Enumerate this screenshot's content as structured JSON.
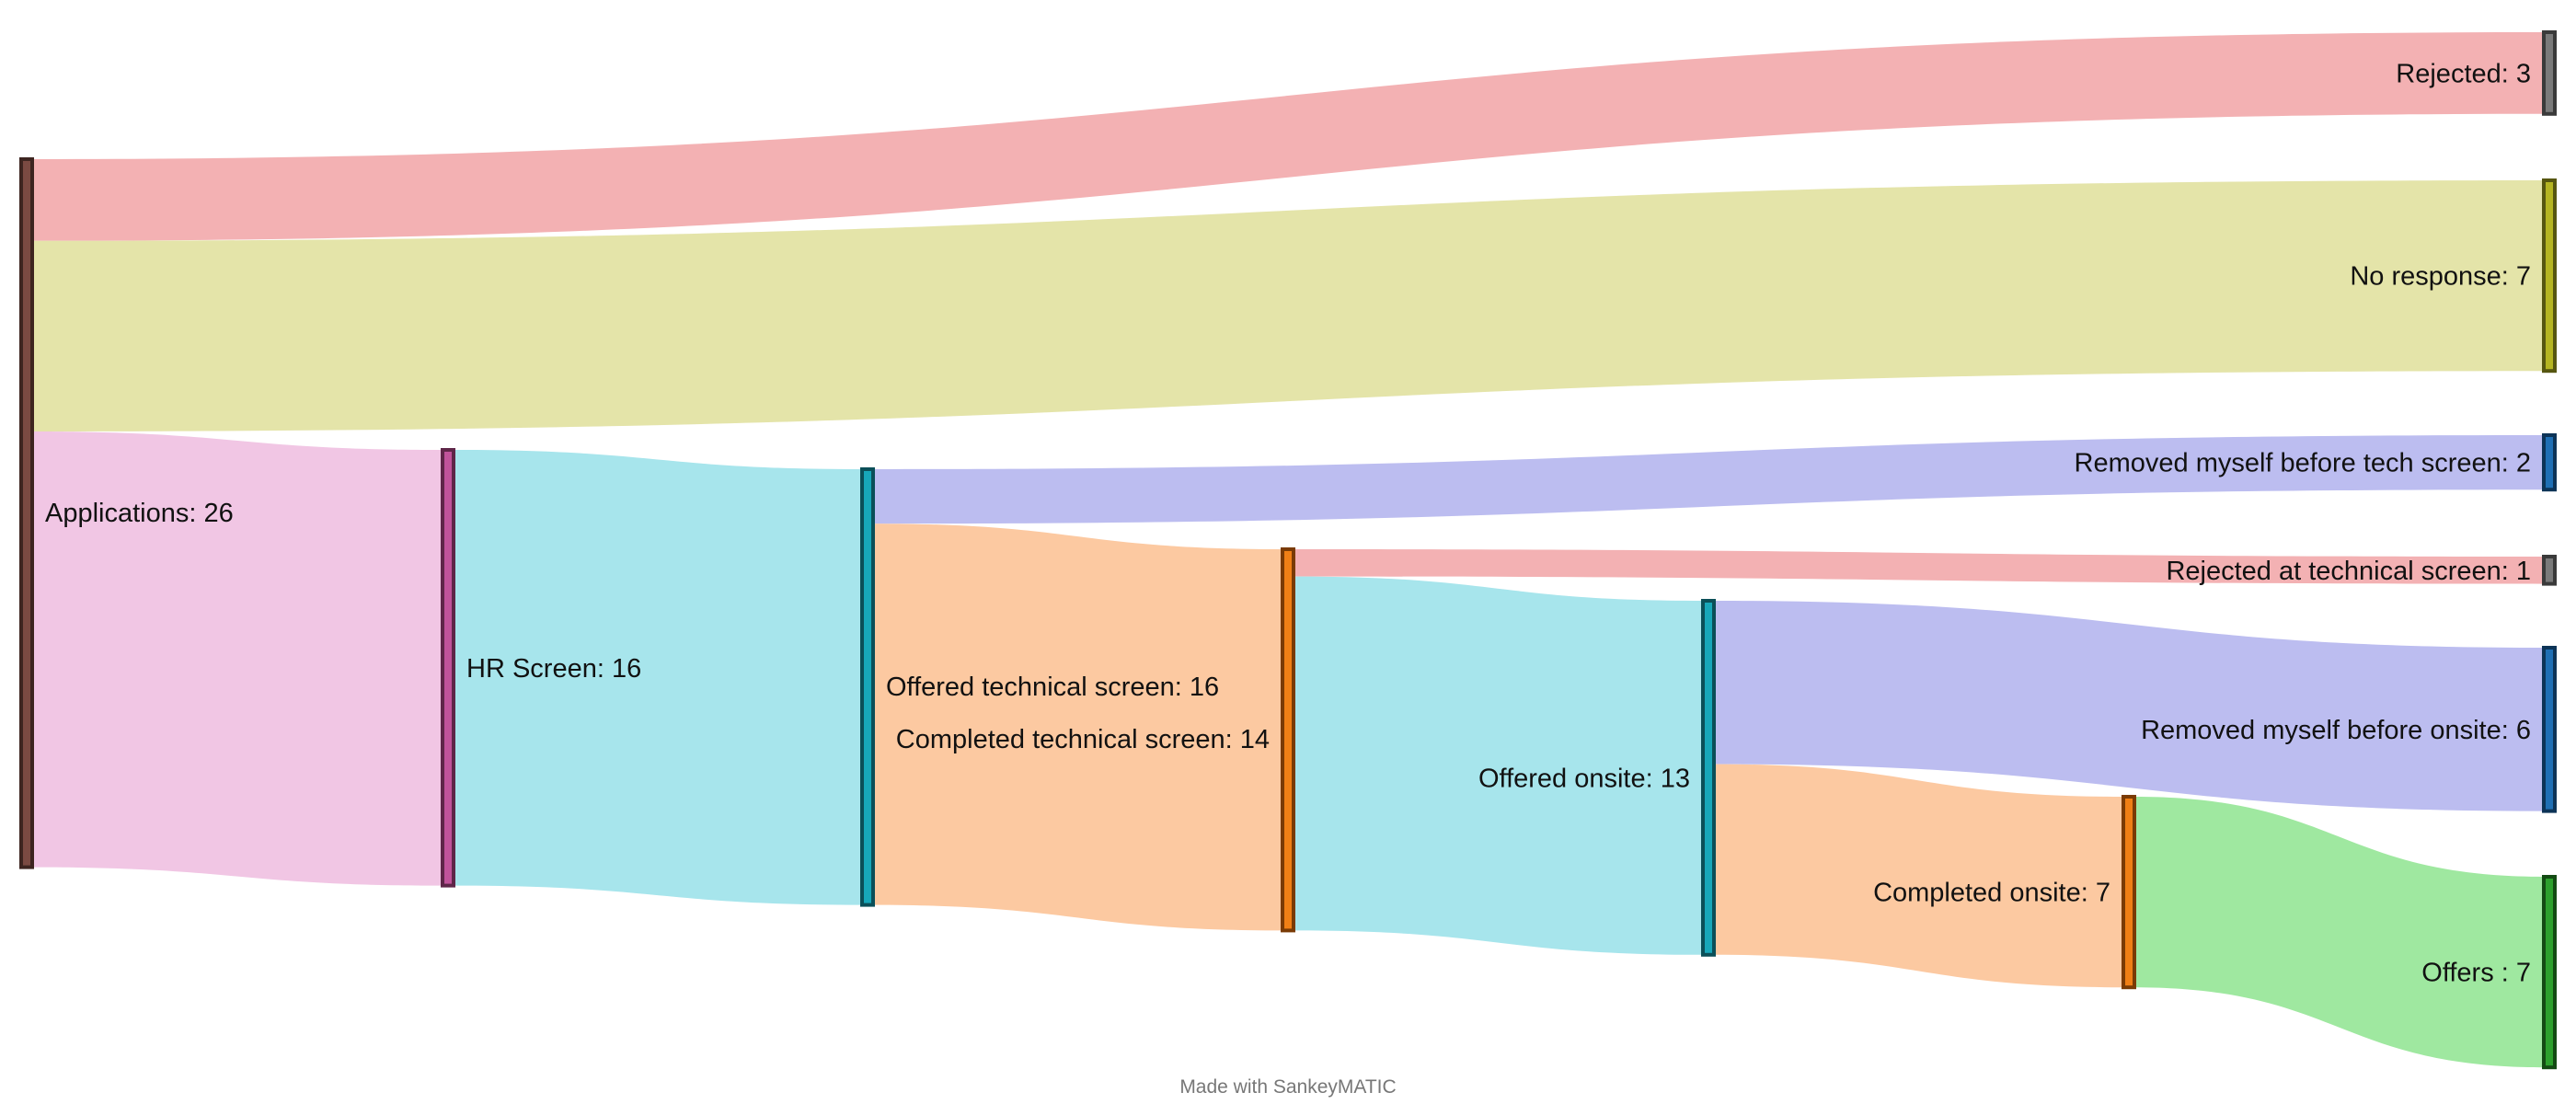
{
  "chart_data": {
    "type": "sankey",
    "nodes": [
      {
        "id": "applications",
        "label": "Applications: 26",
        "color": "#7a4a42",
        "border": "#3d2520"
      },
      {
        "id": "hr_screen",
        "label": "HR Screen: 16",
        "color": "#c0539a",
        "border": "#5e2648"
      },
      {
        "id": "offered_tech",
        "label": "Offered technical screen: 16",
        "color": "#17a7b9",
        "border": "#0b4f58"
      },
      {
        "id": "completed_tech",
        "label": "Completed technical screen: 14",
        "color": "#f07f15",
        "border": "#7a3b05"
      },
      {
        "id": "offered_onsite",
        "label": "Offered onsite: 13",
        "color": "#17a7b9",
        "border": "#0b4f58"
      },
      {
        "id": "completed_onsite",
        "label": "Completed onsite: 7",
        "color": "#f07f15",
        "border": "#7a3b05"
      },
      {
        "id": "rejected",
        "label": "Rejected: 3",
        "color": "#7a7a7a",
        "border": "#3a3a3a"
      },
      {
        "id": "no_response",
        "label": "No response: 7",
        "color": "#b5b521",
        "border": "#565610"
      },
      {
        "id": "removed_before_tech",
        "label": "Removed myself before tech screen: 2",
        "color": "#1f6fb4",
        "border": "#0d3457"
      },
      {
        "id": "rejected_at_tech",
        "label": "Rejected at technical screen: 1",
        "color": "#7a7a7a",
        "border": "#3a3a3a"
      },
      {
        "id": "removed_before_onsite",
        "label": "Removed myself before onsite: 6",
        "color": "#1f6fb4",
        "border": "#0d3457"
      },
      {
        "id": "offers",
        "label": "Offers : 7",
        "color": "#2ca02c",
        "border": "#134b13"
      }
    ],
    "links": [
      {
        "source": "applications",
        "target": "rejected",
        "value": 3,
        "color": "#f3b1b3"
      },
      {
        "source": "applications",
        "target": "no_response",
        "value": 7,
        "color": "#e4e4a9"
      },
      {
        "source": "applications",
        "target": "hr_screen",
        "value": 16,
        "color": "#f1c6e4"
      },
      {
        "source": "hr_screen",
        "target": "offered_tech",
        "value": 16,
        "color": "#a7e5ec"
      },
      {
        "source": "offered_tech",
        "target": "removed_before_tech",
        "value": 2,
        "color": "#bcbdf0"
      },
      {
        "source": "offered_tech",
        "target": "completed_tech",
        "value": 14,
        "color": "#fcc9a1"
      },
      {
        "source": "completed_tech",
        "target": "rejected_at_tech",
        "value": 1,
        "color": "#f3b1b3"
      },
      {
        "source": "completed_tech",
        "target": "offered_onsite",
        "value": 13,
        "color": "#a7e5ec"
      },
      {
        "source": "offered_onsite",
        "target": "removed_before_onsite",
        "value": 6,
        "color": "#bcbdf0"
      },
      {
        "source": "offered_onsite",
        "target": "completed_onsite",
        "value": 7,
        "color": "#fcc9a1"
      },
      {
        "source": "completed_onsite",
        "target": "offers",
        "value": 7,
        "color": "#9fe8a0"
      }
    ]
  },
  "footer": {
    "text": "Made with SankeyMATIC"
  }
}
